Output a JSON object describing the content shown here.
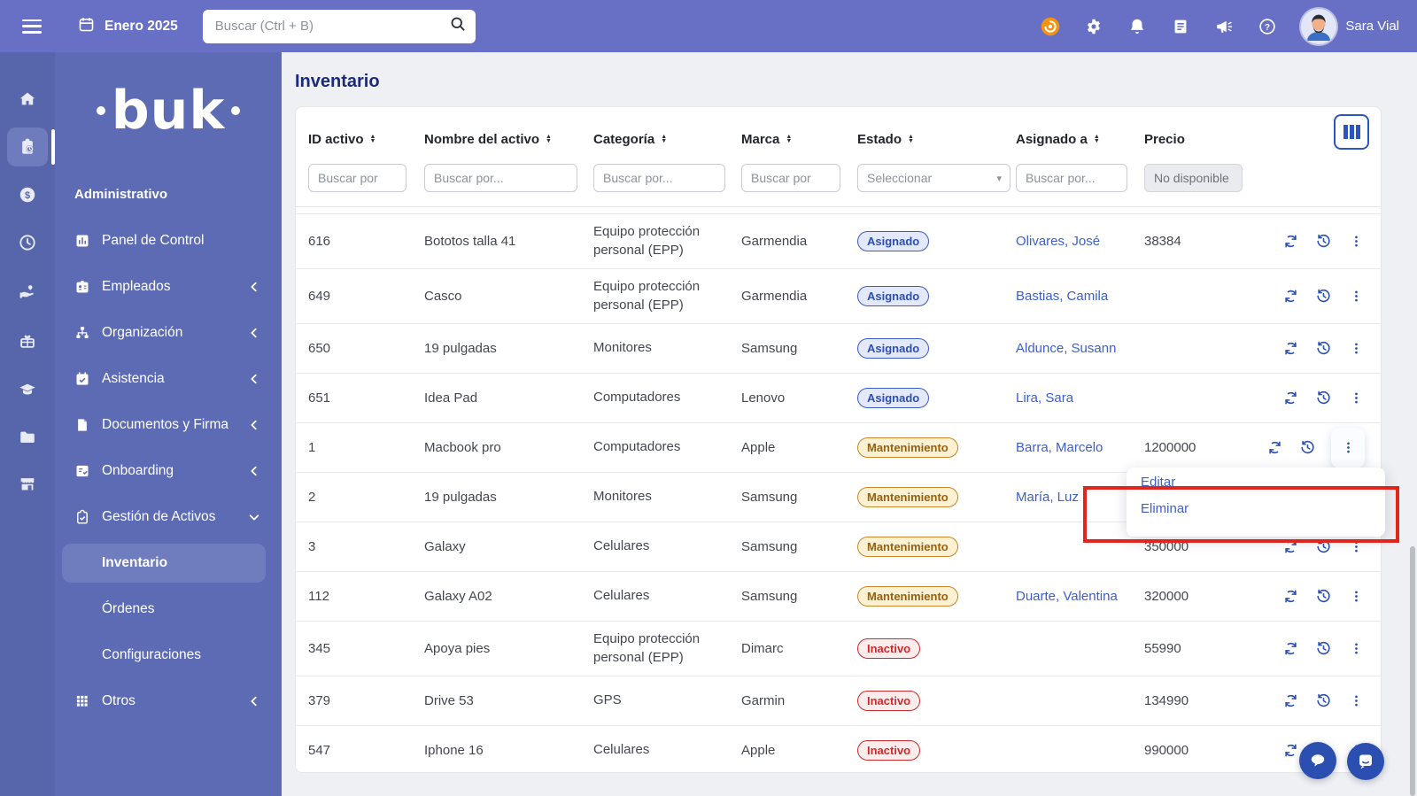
{
  "topbar": {
    "period_label": "Enero 2025",
    "search_placeholder": "Buscar (Ctrl + B)",
    "user_name": "Sara Vial"
  },
  "sidebar": {
    "logo_text": "buk",
    "section_label": "Administrativo",
    "rail_items": [
      {
        "icon": "home-icon",
        "active": false
      },
      {
        "icon": "clipboard-clock-icon",
        "active": true
      },
      {
        "icon": "coin-icon",
        "active": false
      },
      {
        "icon": "clock-icon",
        "active": false
      },
      {
        "icon": "hand-heart-icon",
        "active": false
      },
      {
        "icon": "gift-icon",
        "active": false
      },
      {
        "icon": "graduation-cap-icon",
        "active": false
      },
      {
        "icon": "folder-icon",
        "active": false
      },
      {
        "icon": "storefront-icon",
        "active": false
      }
    ],
    "menu_items": [
      {
        "label": "Panel de Control",
        "icon": "bar-chart-icon",
        "chevron": null
      },
      {
        "label": "Empleados",
        "icon": "id-badge-icon",
        "chevron": "left"
      },
      {
        "label": "Organización",
        "icon": "org-chart-icon",
        "chevron": "left"
      },
      {
        "label": "Asistencia",
        "icon": "calendar-check-icon",
        "chevron": "left"
      },
      {
        "label": "Documentos y Firma",
        "icon": "document-icon",
        "chevron": "left"
      },
      {
        "label": "Onboarding",
        "icon": "list-check-icon",
        "chevron": "left"
      },
      {
        "label": "Gestión de Activos",
        "icon": "clipboard-check-icon",
        "chevron": "down",
        "expanded": true,
        "children": [
          {
            "label": "Inventario",
            "active": true
          },
          {
            "label": "Órdenes",
            "active": false
          },
          {
            "label": "Configuraciones",
            "active": false
          }
        ]
      },
      {
        "label": "Otros",
        "icon": "grid-icon",
        "chevron": "left"
      }
    ]
  },
  "main": {
    "title": "Inventario",
    "table": {
      "columns": [
        {
          "label": "ID activo",
          "sortable": true,
          "filter": {
            "type": "text",
            "placeholder": "Buscar por"
          }
        },
        {
          "label": "Nombre del activo",
          "sortable": true,
          "filter": {
            "type": "text",
            "placeholder": "Buscar por..."
          }
        },
        {
          "label": "Categoría",
          "sortable": true,
          "filter": {
            "type": "text",
            "placeholder": "Buscar por..."
          }
        },
        {
          "label": "Marca",
          "sortable": true,
          "filter": {
            "type": "text",
            "placeholder": "Buscar por"
          }
        },
        {
          "label": "Estado",
          "sortable": true,
          "filter": {
            "type": "select",
            "placeholder": "Seleccionar"
          }
        },
        {
          "label": "Asignado a",
          "sortable": true,
          "filter": {
            "type": "text",
            "placeholder": "Buscar por..."
          }
        },
        {
          "label": "Precio",
          "sortable": false,
          "filter": {
            "type": "text",
            "placeholder": "No disponible",
            "disabled": true
          }
        }
      ],
      "rows": [
        {
          "id": "616",
          "nombre": "Bototos talla 41",
          "categoria": "Equipo protección personal (EPP)",
          "marca": "Garmendia",
          "estado": "Asignado",
          "asignado": "Olivares, José",
          "precio": "38384",
          "menu_open": false
        },
        {
          "id": "649",
          "nombre": "Casco",
          "categoria": "Equipo protección personal (EPP)",
          "marca": "Garmendia",
          "estado": "Asignado",
          "asignado": "Bastias, Camila",
          "precio": "",
          "menu_open": false
        },
        {
          "id": "650",
          "nombre": "19 pulgadas",
          "categoria": "Monitores",
          "marca": "Samsung",
          "estado": "Asignado",
          "asignado": "Aldunce, Susann",
          "precio": "",
          "menu_open": false
        },
        {
          "id": "651",
          "nombre": "Idea Pad",
          "categoria": "Computadores",
          "marca": "Lenovo",
          "estado": "Asignado",
          "asignado": "Lira, Sara",
          "precio": "",
          "menu_open": false
        },
        {
          "id": "1",
          "nombre": "Macbook pro",
          "categoria": "Computadores",
          "marca": "Apple",
          "estado": "Mantenimiento",
          "asignado": "Barra, Marcelo",
          "precio": "1200000",
          "menu_open": true
        },
        {
          "id": "2",
          "nombre": "19 pulgadas",
          "categoria": "Monitores",
          "marca": "Samsung",
          "estado": "Mantenimiento",
          "asignado": "María, Luz",
          "precio": "",
          "menu_open": false
        },
        {
          "id": "3",
          "nombre": "Galaxy",
          "categoria": "Celulares",
          "marca": "Samsung",
          "estado": "Mantenimiento",
          "asignado": "",
          "precio": "350000",
          "menu_open": false
        },
        {
          "id": "112",
          "nombre": "Galaxy A02",
          "categoria": "Celulares",
          "marca": "Samsung",
          "estado": "Mantenimiento",
          "asignado": "Duarte, Valentina",
          "precio": "320000",
          "menu_open": false
        },
        {
          "id": "345",
          "nombre": "Apoya pies",
          "categoria": "Equipo protección personal (EPP)",
          "marca": "Dimarc",
          "estado": "Inactivo",
          "asignado": "",
          "precio": "55990",
          "menu_open": false
        },
        {
          "id": "379",
          "nombre": "Drive 53",
          "categoria": "GPS",
          "marca": "Garmin",
          "estado": "Inactivo",
          "asignado": "",
          "precio": "134990",
          "menu_open": false
        },
        {
          "id": "547",
          "nombre": "Iphone 16",
          "categoria": "Celulares",
          "marca": "Apple",
          "estado": "Inactivo",
          "asignado": "",
          "precio": "990000",
          "menu_open": false
        }
      ]
    },
    "context_menu": {
      "items": [
        "Editar",
        "Eliminar"
      ]
    }
  },
  "status_colors": {
    "Asignado": {
      "bg": "#e3e9fb",
      "border": "#3b5cc0",
      "text": "#2d4fae"
    },
    "Mantenimiento": {
      "bg": "#fdf1d3",
      "border": "#c8862d",
      "text": "#96610f"
    },
    "Inactivo": {
      "bg": "#fdecec",
      "border": "#cf2a2a",
      "text": "#cf2a2a"
    }
  },
  "colors": {
    "topbar": "#6770c4",
    "rail": "#5766ab",
    "menu": "#5c6bb4",
    "accent_blue": "#2b4fb0",
    "link": "#3c5fca",
    "title": "#1c2a7a",
    "annotation_red": "#e3241b",
    "rewards_orange": "#f5930f"
  }
}
